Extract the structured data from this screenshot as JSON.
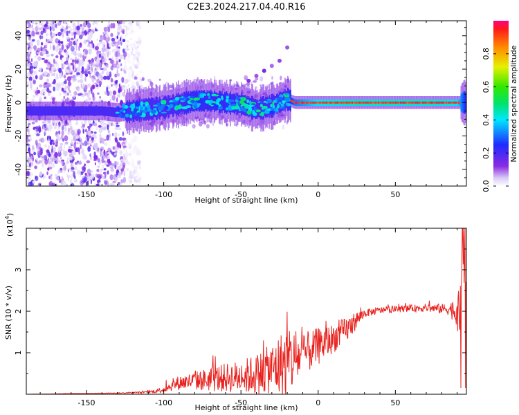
{
  "title": "C2E3.2024.217.04.40.R16",
  "colors": {
    "snr_line": "#e8231f",
    "signal_core": "#e03030",
    "noise": "#8a2be2"
  },
  "chart_data": [
    {
      "type": "heatmap",
      "xlabel": "Height of straight line (km)",
      "ylabel": "Frequency (Hz)",
      "xlim": [
        -189,
        96
      ],
      "ylim": [
        -50,
        49
      ],
      "xticks": [
        -150,
        -100,
        -50,
        0,
        50
      ],
      "yticks": [
        -40,
        -20,
        0,
        20,
        40
      ],
      "grid": false,
      "colorbar": {
        "label": "Normalized spectral amplitude",
        "range": [
          0.0,
          1.0
        ],
        "ticks": [
          "0.0",
          "0.2",
          "0.4",
          "0.6",
          "0.8"
        ],
        "tick_values": [
          0.0,
          0.2,
          0.4,
          0.6,
          0.8
        ],
        "colormap": "rainbow"
      },
      "ridge": {
        "x": [
          -189,
          -160,
          -140,
          -130,
          -120,
          -110,
          -100,
          -90,
          -80,
          -70,
          -60,
          -50,
          -40,
          -30,
          -25,
          -20,
          -15,
          0,
          25,
          50,
          75,
          90,
          96
        ],
        "y": [
          -5,
          -5,
          -5,
          -6,
          -5,
          -4,
          -3,
          -1,
          1,
          1,
          0,
          -1,
          -4,
          -2,
          0,
          2,
          0,
          0,
          0,
          0,
          0,
          0,
          0
        ],
        "peak_amplitude": [
          0.25,
          0.25,
          0.25,
          0.3,
          0.35,
          0.35,
          0.4,
          0.45,
          0.5,
          0.5,
          0.5,
          0.45,
          0.45,
          0.4,
          0.4,
          0.45,
          0.7,
          0.9,
          0.95,
          0.95,
          0.95,
          0.9,
          0.5
        ]
      },
      "noise_region_x": [
        -189,
        -125
      ],
      "secondary_streak": {
        "x": [
          -45,
          -40,
          -35,
          -30,
          -25,
          -20
        ],
        "y": [
          13,
          16,
          19,
          22,
          25,
          33
        ]
      }
    },
    {
      "type": "line",
      "xlabel": "Height of straight line (km)",
      "ylabel": "SNR (10 * v/v)",
      "multiplier_label": "(x10",
      "multiplier_exp": "4",
      "multiplier_close": ")",
      "xlim": [
        -189,
        96
      ],
      "ylim": [
        0,
        4
      ],
      "xticks": [
        -150,
        -100,
        -50,
        0,
        50
      ],
      "yticks": [
        1,
        2,
        3
      ],
      "grid": false,
      "envelope": {
        "x": [
          -189,
          -150,
          -125,
          -110,
          -105,
          -100,
          -95,
          -90,
          -80,
          -70,
          -60,
          -50,
          -45,
          -40,
          -35,
          -30,
          -25,
          -20,
          -15,
          -10,
          -5,
          0,
          5,
          10,
          20,
          25,
          30,
          40,
          50,
          60,
          70,
          80,
          85,
          90,
          92,
          94,
          96
        ],
        "mean": [
          0.0,
          0.02,
          0.03,
          0.05,
          0.08,
          0.12,
          0.2,
          0.28,
          0.32,
          0.36,
          0.4,
          0.42,
          0.45,
          0.48,
          0.55,
          0.62,
          0.68,
          0.75,
          0.85,
          0.95,
          1.05,
          1.15,
          1.25,
          1.35,
          1.6,
          1.8,
          1.95,
          2.02,
          2.05,
          2.07,
          2.08,
          2.06,
          2.05,
          2.0,
          1.8,
          2.5,
          3.0
        ],
        "spread": [
          0.0,
          0.005,
          0.01,
          0.03,
          0.05,
          0.08,
          0.12,
          0.18,
          0.22,
          0.3,
          0.35,
          0.4,
          0.45,
          0.5,
          0.55,
          0.6,
          0.8,
          0.9,
          0.7,
          0.5,
          0.5,
          0.45,
          0.4,
          0.35,
          0.3,
          0.2,
          0.1,
          0.08,
          0.08,
          0.08,
          0.1,
          0.12,
          0.15,
          0.4,
          0.8,
          1.0,
          1.2
        ]
      }
    }
  ]
}
